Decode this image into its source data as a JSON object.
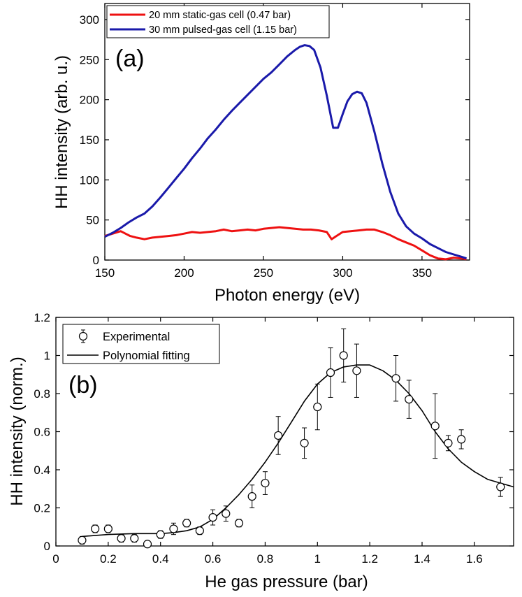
{
  "chart_data": [
    {
      "type": "line",
      "panel_label": "(a)",
      "xlabel": "Photon energy (eV)",
      "ylabel": "HH intensity (arb. u.)",
      "xlim": [
        150,
        380
      ],
      "ylim": [
        0,
        320
      ],
      "xticks": [
        150,
        200,
        250,
        300,
        350
      ],
      "yticks": [
        0,
        50,
        100,
        150,
        200,
        250,
        300
      ],
      "series": [
        {
          "name": "20 mm static-gas cell (0.47 bar)",
          "color": "#ee1111",
          "x": [
            150,
            155,
            160,
            163,
            166,
            170,
            175,
            180,
            185,
            190,
            195,
            200,
            205,
            210,
            215,
            220,
            225,
            230,
            235,
            240,
            245,
            250,
            255,
            260,
            265,
            270,
            275,
            280,
            285,
            290,
            293,
            296,
            300,
            305,
            310,
            315,
            320,
            325,
            330,
            335,
            340,
            345,
            350,
            355,
            360,
            365,
            370,
            375,
            378
          ],
          "y": [
            30,
            33,
            36,
            33,
            30,
            28,
            26,
            28,
            29,
            30,
            31,
            33,
            35,
            34,
            35,
            36,
            38,
            36,
            37,
            38,
            37,
            39,
            40,
            41,
            40,
            39,
            38,
            38,
            37,
            35,
            26,
            30,
            35,
            36,
            37,
            38,
            38,
            35,
            31,
            26,
            22,
            18,
            12,
            6,
            2,
            1,
            3,
            2,
            1
          ]
        },
        {
          "name": "30 mm pulsed-gas cell (1.15 bar)",
          "color": "#1a1aaa",
          "x": [
            150,
            155,
            160,
            165,
            170,
            175,
            180,
            185,
            190,
            195,
            200,
            205,
            210,
            215,
            220,
            225,
            230,
            235,
            240,
            245,
            250,
            255,
            260,
            265,
            270,
            273,
            276,
            279,
            282,
            286,
            290,
            294,
            297,
            300,
            303,
            306,
            309,
            312,
            315,
            320,
            325,
            330,
            335,
            340,
            345,
            350,
            355,
            360,
            365,
            370,
            375,
            378
          ],
          "y": [
            29,
            34,
            40,
            47,
            53,
            58,
            67,
            78,
            90,
            102,
            114,
            127,
            139,
            152,
            163,
            175,
            186,
            196,
            206,
            216,
            226,
            234,
            244,
            254,
            262,
            266,
            268,
            267,
            262,
            240,
            205,
            165,
            165,
            182,
            198,
            207,
            210,
            208,
            196,
            160,
            120,
            85,
            58,
            42,
            33,
            27,
            20,
            15,
            10,
            7,
            4,
            2
          ]
        }
      ]
    },
    {
      "type": "scatter",
      "panel_label": "(b)",
      "xlabel": "He gas pressure (bar)",
      "ylabel": "HH intensity (norm.)",
      "xlim": [
        0,
        1.75
      ],
      "ylim": [
        0,
        1.2
      ],
      "xticks": [
        0,
        0.2,
        0.4,
        0.6,
        0.8,
        1,
        1.2,
        1.4,
        1.6
      ],
      "yticks": [
        0,
        0.2,
        0.4,
        0.6,
        0.8,
        1,
        1.2
      ],
      "xtick_labels": [
        "0",
        "0.2",
        "0.4",
        "0.6",
        "0.8",
        "1",
        "1.2",
        "1.4",
        "1.6"
      ],
      "ytick_labels": [
        "0",
        "0.2",
        "0.4",
        "0.6",
        "0.8",
        "1",
        "1.2"
      ],
      "series": [
        {
          "name": "Experimental",
          "marker": "open-circle",
          "x": [
            0.1,
            0.15,
            0.2,
            0.25,
            0.3,
            0.35,
            0.4,
            0.45,
            0.5,
            0.55,
            0.6,
            0.65,
            0.7,
            0.75,
            0.8,
            0.85,
            0.95,
            1.0,
            1.05,
            1.1,
            1.15,
            1.3,
            1.35,
            1.45,
            1.5,
            1.55,
            1.7
          ],
          "y": [
            0.03,
            0.09,
            0.09,
            0.04,
            0.04,
            0.01,
            0.06,
            0.09,
            0.12,
            0.08,
            0.15,
            0.17,
            0.12,
            0.26,
            0.33,
            0.58,
            0.54,
            0.73,
            0.91,
            1.0,
            0.92,
            0.88,
            0.77,
            0.63,
            0.54,
            0.56,
            0.31
          ],
          "err": [
            0.02,
            0.02,
            0.02,
            0.02,
            0.02,
            0.01,
            0.02,
            0.03,
            0.02,
            0.02,
            0.04,
            0.04,
            0.02,
            0.06,
            0.06,
            0.1,
            0.08,
            0.12,
            0.13,
            0.14,
            0.14,
            0.12,
            0.1,
            0.17,
            0.04,
            0.05,
            0.05
          ]
        },
        {
          "name": "Polynomial fitting",
          "x": [
            0.1,
            0.2,
            0.3,
            0.4,
            0.45,
            0.5,
            0.55,
            0.6,
            0.65,
            0.7,
            0.75,
            0.8,
            0.85,
            0.9,
            0.95,
            1.0,
            1.05,
            1.1,
            1.15,
            1.2,
            1.25,
            1.3,
            1.35,
            1.4,
            1.45,
            1.5,
            1.55,
            1.6,
            1.65,
            1.7,
            1.75
          ],
          "y": [
            0.05,
            0.06,
            0.065,
            0.065,
            0.07,
            0.08,
            0.1,
            0.14,
            0.2,
            0.27,
            0.35,
            0.44,
            0.54,
            0.65,
            0.76,
            0.85,
            0.91,
            0.94,
            0.95,
            0.95,
            0.92,
            0.87,
            0.8,
            0.71,
            0.6,
            0.51,
            0.44,
            0.39,
            0.35,
            0.33,
            0.31
          ]
        }
      ]
    }
  ]
}
